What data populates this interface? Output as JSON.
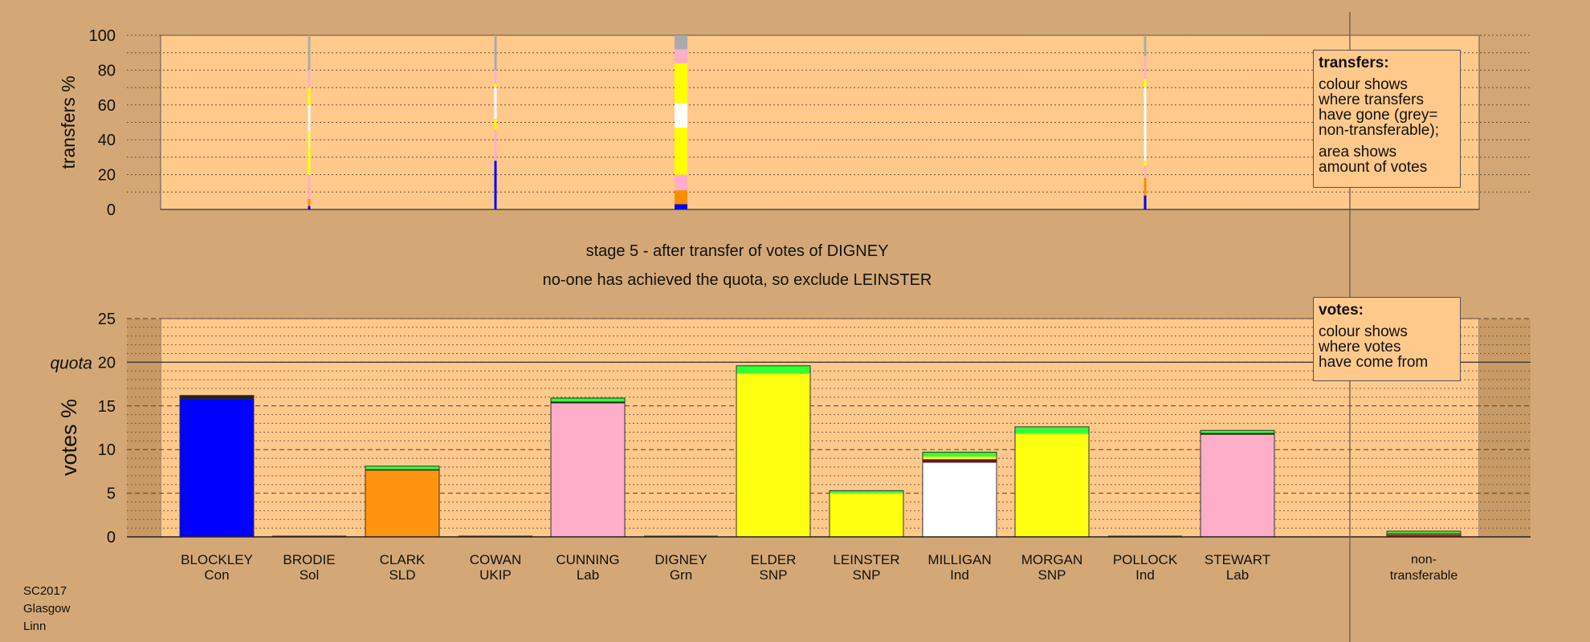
{
  "chart_data": [
    {
      "type": "bar",
      "stacked": true,
      "panel": "transfers",
      "ylabel": "transfers %",
      "ylim": [
        0,
        100
      ],
      "yticks": [
        0,
        20,
        40,
        60,
        80,
        100
      ],
      "grid": "dotted every 10",
      "categories": [
        "BLOCKLEY",
        "BRODIE",
        "CLARK",
        "COWAN",
        "CUNNING",
        "DIGNEY",
        "ELDER",
        "LEINSTER",
        "MILLIGAN",
        "MORGAN",
        "POLLOCK",
        "STEWART"
      ],
      "bars": [
        {
          "category": "BRODIE",
          "width": "thin",
          "segments": [
            {
              "color": "#0000ff",
              "from": 0,
              "to": 2
            },
            {
              "color": "#ff8c00",
              "from": 2,
              "to": 6
            },
            {
              "color": "#ffaec9",
              "from": 6,
              "to": 20
            },
            {
              "color": "#ffff00",
              "from": 20,
              "to": 35
            },
            {
              "color": "#ffff55",
              "from": 35,
              "to": 45
            },
            {
              "color": "#ffffff",
              "from": 45,
              "to": 60
            },
            {
              "color": "#ffff00",
              "from": 60,
              "to": 70
            },
            {
              "color": "#ffaec9",
              "from": 70,
              "to": 80
            },
            {
              "color": "#aaaaaa",
              "from": 80,
              "to": 100
            }
          ]
        },
        {
          "category": "COWAN",
          "width": "thin",
          "segments": [
            {
              "color": "#0000ff",
              "from": 0,
              "to": 28
            },
            {
              "color": "#ffaec9",
              "from": 28,
              "to": 46
            },
            {
              "color": "#ffff00",
              "from": 46,
              "to": 52
            },
            {
              "color": "#ffffff",
              "from": 52,
              "to": 70
            },
            {
              "color": "#ffff00",
              "from": 70,
              "to": 72
            },
            {
              "color": "#ffaec9",
              "from": 72,
              "to": 80
            },
            {
              "color": "#aaaaaa",
              "from": 80,
              "to": 100
            }
          ]
        },
        {
          "category": "DIGNEY",
          "width": "wide",
          "segments": [
            {
              "color": "#0000ff",
              "from": 0,
              "to": 3
            },
            {
              "color": "#ff8c00",
              "from": 3,
              "to": 11
            },
            {
              "color": "#ffaec9",
              "from": 11,
              "to": 20
            },
            {
              "color": "#ffff00",
              "from": 20,
              "to": 47
            },
            {
              "color": "#ffffff",
              "from": 47,
              "to": 61
            },
            {
              "color": "#ffff00",
              "from": 61,
              "to": 84
            },
            {
              "color": "#ffaec9",
              "from": 84,
              "to": 92
            },
            {
              "color": "#aaaaaa",
              "from": 92,
              "to": 100
            }
          ]
        },
        {
          "category": "POLLOCK",
          "width": "thin",
          "segments": [
            {
              "color": "#0000ff",
              "from": 0,
              "to": 8
            },
            {
              "color": "#ff8c00",
              "from": 8,
              "to": 18
            },
            {
              "color": "#ffaec9",
              "from": 18,
              "to": 25
            },
            {
              "color": "#ffff00",
              "from": 25,
              "to": 28
            },
            {
              "color": "#ffffff",
              "from": 28,
              "to": 70
            },
            {
              "color": "#ffff00",
              "from": 70,
              "to": 75
            },
            {
              "color": "#ffaec9",
              "from": 75,
              "to": 88
            },
            {
              "color": "#aaaaaa",
              "from": 88,
              "to": 100
            }
          ]
        }
      ]
    },
    {
      "type": "bar",
      "stacked": true,
      "panel": "votes",
      "ylabel": "votes %",
      "ylim": [
        0,
        25
      ],
      "yticks": [
        0,
        5,
        10,
        15,
        20,
        25
      ],
      "quota": 20,
      "quota_label": "quota",
      "grid": "dashed every 5, dotted every 1",
      "categories": [
        "BLOCKLEY",
        "BRODIE",
        "CLARK",
        "COWAN",
        "CUNNING",
        "DIGNEY",
        "ELDER",
        "LEINSTER",
        "MILLIGAN",
        "MORGAN",
        "POLLOCK",
        "STEWART"
      ],
      "parties": [
        "Con",
        "Sol",
        "SLD",
        "UKIP",
        "Lab",
        "Grn",
        "SNP",
        "SNP",
        "Ind",
        "SNP",
        "Ind",
        "Lab"
      ],
      "extra_category": [
        "non-",
        "transferable"
      ],
      "bars": [
        {
          "category": "BLOCKLEY",
          "segments": [
            {
              "color": "#0000ff",
              "from": 0,
              "to": 15.8
            },
            {
              "color": "#222222",
              "from": 15.8,
              "to": 16.2
            }
          ]
        },
        {
          "category": "BRODIE",
          "segments": []
        },
        {
          "category": "CLARK",
          "segments": [
            {
              "color": "#ff9410",
              "from": 0,
              "to": 7.6
            },
            {
              "color": "#222222",
              "from": 7.6,
              "to": 7.75
            },
            {
              "color": "#33ff33",
              "from": 7.75,
              "to": 8.1
            }
          ]
        },
        {
          "category": "COWAN",
          "segments": []
        },
        {
          "category": "CUNNING",
          "segments": [
            {
              "color": "#ffaec9",
              "from": 0,
              "to": 15.3
            },
            {
              "color": "#222222",
              "from": 15.3,
              "to": 15.5
            },
            {
              "color": "#33ff33",
              "from": 15.5,
              "to": 15.9
            }
          ]
        },
        {
          "category": "DIGNEY",
          "segments": []
        },
        {
          "category": "ELDER",
          "segments": [
            {
              "color": "#ffff10",
              "from": 0,
              "to": 18.7
            },
            {
              "color": "#33ff33",
              "from": 18.7,
              "to": 19.6
            }
          ]
        },
        {
          "category": "LEINSTER",
          "segments": [
            {
              "color": "#ffff10",
              "from": 0,
              "to": 5.0
            },
            {
              "color": "#33ff33",
              "from": 5.0,
              "to": 5.3
            }
          ]
        },
        {
          "category": "MILLIGAN",
          "segments": [
            {
              "color": "#ffffff",
              "from": 0,
              "to": 8.5
            },
            {
              "color": "#661111",
              "from": 8.5,
              "to": 8.9
            },
            {
              "color": "#ffff10",
              "from": 8.9,
              "to": 9.2
            },
            {
              "color": "#33ff33",
              "from": 9.2,
              "to": 9.7
            }
          ]
        },
        {
          "category": "MORGAN",
          "segments": [
            {
              "color": "#ffff10",
              "from": 0,
              "to": 11.8
            },
            {
              "color": "#33ff33",
              "from": 11.8,
              "to": 12.6
            }
          ]
        },
        {
          "category": "POLLOCK",
          "segments": []
        },
        {
          "category": "STEWART",
          "segments": [
            {
              "color": "#ffaec9",
              "from": 0,
              "to": 11.7
            },
            {
              "color": "#222222",
              "from": 11.7,
              "to": 11.9
            },
            {
              "color": "#33ff33",
              "from": 11.9,
              "to": 12.2
            }
          ]
        },
        {
          "category": "non-transferable",
          "segments": [
            {
              "color": "#cc1111",
              "from": 0,
              "to": 0.25
            },
            {
              "color": "#666633",
              "from": 0.25,
              "to": 0.45
            },
            {
              "color": "#33ff33",
              "from": 0.45,
              "to": 0.65
            }
          ]
        }
      ]
    }
  ],
  "legends": {
    "transfers": {
      "title": "transfers:",
      "lines1": [
        "colour shows",
        "where transfers",
        "have gone (grey=",
        "non-transferable);"
      ],
      "lines2": [
        "area shows",
        "amount of votes"
      ]
    },
    "votes": {
      "title": "votes:",
      "lines1": [
        "colour shows",
        "where votes",
        "have come from"
      ]
    }
  },
  "captions": {
    "stage": "stage 5 - after transfer of votes of DIGNEY",
    "action": "no-one has achieved the quota, so exclude LEINSTER"
  },
  "source": [
    "SC2017",
    "Glasgow",
    "Linn"
  ],
  "colors": {
    "background": "#d4a876",
    "plot_area": "#ffc98c",
    "non_plot_area": "#c89a66"
  }
}
